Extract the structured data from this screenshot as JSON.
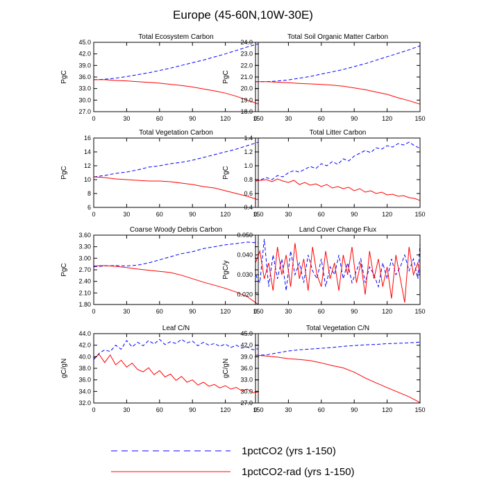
{
  "figure": {
    "title": "Europe (45-60N,10W-30E)",
    "legend": [
      {
        "label": "1pctCO2 (yrs 1-150)",
        "color": "#0000ff",
        "dash": "dashed"
      },
      {
        "label": "1pctCO2-rad (yrs 1-150)",
        "color": "#ff0000",
        "dash": "solid"
      }
    ],
    "colors": {
      "blue_series": "#0000ff",
      "red_series": "#ff0000"
    }
  },
  "chart_data": [
    {
      "type": "line",
      "title": "Total Ecosystem Carbon",
      "ylabel": "PgC",
      "xlim": [
        0,
        150
      ],
      "ylim": [
        27.0,
        45.0
      ],
      "xticks": [
        0,
        30,
        60,
        90,
        120,
        150
      ],
      "xtick_labels": [
        "0",
        "30",
        "60",
        "90",
        "120",
        "150"
      ],
      "yticks": [
        27.0,
        30.0,
        33.0,
        36.0,
        39.0,
        42.0,
        45.0
      ],
      "ytick_labels": [
        "27.0",
        "30.0",
        "33.0",
        "36.0",
        "39.0",
        "42.0",
        "45.0"
      ],
      "x": [
        0,
        10,
        20,
        30,
        40,
        50,
        60,
        70,
        80,
        90,
        100,
        110,
        120,
        130,
        140,
        150
      ],
      "series": [
        {
          "name": "1pctCO2 (yrs 1-150)",
          "color": "#0000ff",
          "dash": "dashed",
          "values": [
            35.3,
            35.4,
            35.7,
            36.1,
            36.6,
            37.1,
            37.7,
            38.3,
            39.0,
            39.7,
            40.4,
            41.2,
            42.0,
            42.9,
            43.8,
            44.6
          ]
        },
        {
          "name": "1pctCO2-rad (yrs 1-150)",
          "color": "#ff0000",
          "dash": "solid",
          "values": [
            35.3,
            35.3,
            35.1,
            35.0,
            34.8,
            34.6,
            34.4,
            34.1,
            33.8,
            33.4,
            32.9,
            32.4,
            31.8,
            31.0,
            30.0,
            29.0
          ]
        }
      ]
    },
    {
      "type": "line",
      "title": "Total Soil Organic Matter Carbon",
      "ylabel": "PgC",
      "xlim": [
        0,
        150
      ],
      "ylim": [
        18.0,
        24.0
      ],
      "xticks": [
        0,
        30,
        60,
        90,
        120,
        150
      ],
      "xtick_labels": [
        "0",
        "30",
        "60",
        "90",
        "120",
        "150"
      ],
      "yticks": [
        18.0,
        19.0,
        20.0,
        21.0,
        22.0,
        23.0,
        24.0
      ],
      "ytick_labels": [
        "18.0",
        "19.0",
        "20.0",
        "21.0",
        "22.0",
        "23.0",
        "24.0"
      ],
      "x": [
        0,
        10,
        20,
        30,
        40,
        50,
        60,
        70,
        80,
        90,
        100,
        110,
        120,
        130,
        140,
        150
      ],
      "series": [
        {
          "name": "1pctCO2 (yrs 1-150)",
          "color": "#0000ff",
          "dash": "dashed",
          "values": [
            20.6,
            20.6,
            20.65,
            20.75,
            20.9,
            21.05,
            21.25,
            21.45,
            21.65,
            21.9,
            22.15,
            22.45,
            22.75,
            23.05,
            23.35,
            23.7
          ]
        },
        {
          "name": "1pctCO2-rad (yrs 1-150)",
          "color": "#ff0000",
          "dash": "solid",
          "values": [
            20.6,
            20.6,
            20.55,
            20.5,
            20.45,
            20.4,
            20.35,
            20.3,
            20.2,
            20.05,
            19.9,
            19.7,
            19.5,
            19.2,
            18.95,
            18.65
          ]
        }
      ]
    },
    {
      "type": "line",
      "title": "Total Vegetation Carbon",
      "ylabel": "PgC",
      "xlim": [
        0,
        150
      ],
      "ylim": [
        6,
        16
      ],
      "xticks": [
        0,
        30,
        60,
        90,
        120,
        150
      ],
      "xtick_labels": [
        "0",
        "30",
        "60",
        "90",
        "120",
        "150"
      ],
      "yticks": [
        6,
        8,
        10,
        12,
        14,
        16
      ],
      "ytick_labels": [
        "6",
        "8",
        "10",
        "12",
        "14",
        "16"
      ],
      "x": [
        0,
        10,
        20,
        30,
        40,
        50,
        60,
        70,
        80,
        90,
        100,
        110,
        120,
        130,
        140,
        150
      ],
      "series": [
        {
          "name": "1pctCO2 (yrs 1-150)",
          "color": "#0000ff",
          "dash": "dashed",
          "values": [
            10.4,
            10.6,
            10.9,
            11.1,
            11.4,
            11.8,
            12.0,
            12.3,
            12.5,
            12.8,
            13.2,
            13.6,
            14.0,
            14.4,
            14.9,
            15.4
          ]
        },
        {
          "name": "1pctCO2-rad (yrs 1-150)",
          "color": "#ff0000",
          "dash": "solid",
          "values": [
            10.4,
            10.3,
            10.1,
            10.0,
            9.9,
            9.8,
            9.8,
            9.7,
            9.5,
            9.3,
            9.0,
            8.8,
            8.4,
            8.0,
            7.6,
            7.1
          ]
        }
      ]
    },
    {
      "type": "line",
      "title": "Total Litter Carbon",
      "ylabel": "PgC",
      "xlim": [
        0,
        150
      ],
      "ylim": [
        0.4,
        1.4
      ],
      "xticks": [
        0,
        30,
        60,
        90,
        120,
        150
      ],
      "xtick_labels": [
        "0",
        "30",
        "60",
        "90",
        "120",
        "150"
      ],
      "yticks": [
        0.4,
        0.6,
        0.8,
        1.0,
        1.2,
        1.4
      ],
      "ytick_labels": [
        "0.4",
        "0.6",
        "0.8",
        "1.0",
        "1.2",
        "1.4"
      ],
      "x": [
        0,
        5,
        10,
        15,
        20,
        25,
        30,
        35,
        40,
        45,
        50,
        55,
        60,
        65,
        70,
        75,
        80,
        85,
        90,
        95,
        100,
        105,
        110,
        115,
        120,
        125,
        130,
        135,
        140,
        145,
        150
      ],
      "series": [
        {
          "name": "1pctCO2 (yrs 1-150)",
          "color": "#0000ff",
          "dash": "dashed",
          "values": [
            0.78,
            0.8,
            0.83,
            0.8,
            0.86,
            0.84,
            0.9,
            0.93,
            0.91,
            0.95,
            0.99,
            0.96,
            1.03,
            1.0,
            1.06,
            1.02,
            1.1,
            1.07,
            1.14,
            1.18,
            1.22,
            1.19,
            1.26,
            1.24,
            1.29,
            1.27,
            1.32,
            1.3,
            1.34,
            1.29,
            1.25
          ]
        },
        {
          "name": "1pctCO2-rad (yrs 1-150)",
          "color": "#ff0000",
          "dash": "solid",
          "values": [
            0.78,
            0.79,
            0.8,
            0.77,
            0.81,
            0.78,
            0.76,
            0.79,
            0.73,
            0.76,
            0.72,
            0.74,
            0.7,
            0.73,
            0.68,
            0.7,
            0.67,
            0.69,
            0.64,
            0.67,
            0.62,
            0.64,
            0.6,
            0.62,
            0.58,
            0.59,
            0.56,
            0.57,
            0.54,
            0.53,
            0.5
          ]
        }
      ]
    },
    {
      "type": "line",
      "title": "Coarse Woody Debris Carbon",
      "ylabel": "PgC",
      "xlim": [
        0,
        150
      ],
      "ylim": [
        1.8,
        3.6
      ],
      "xticks": [
        0,
        30,
        60,
        90,
        120,
        150
      ],
      "xtick_labels": [
        "0",
        "30",
        "60",
        "90",
        "120",
        "150"
      ],
      "yticks": [
        1.8,
        2.1,
        2.4,
        2.7,
        3.0,
        3.3,
        3.6
      ],
      "ytick_labels": [
        "1.80",
        "2.10",
        "2.40",
        "2.70",
        "3.00",
        "3.30",
        "3.60"
      ],
      "x": [
        0,
        10,
        20,
        30,
        40,
        50,
        60,
        70,
        80,
        90,
        100,
        110,
        120,
        130,
        140,
        150
      ],
      "series": [
        {
          "name": "1pctCO2 (yrs 1-150)",
          "color": "#0000ff",
          "dash": "dashed",
          "values": [
            2.78,
            2.8,
            2.81,
            2.8,
            2.82,
            2.88,
            2.96,
            3.04,
            3.12,
            3.17,
            3.25,
            3.3,
            3.35,
            3.38,
            3.42,
            3.4
          ]
        },
        {
          "name": "1pctCO2-rad (yrs 1-150)",
          "color": "#ff0000",
          "dash": "solid",
          "values": [
            2.8,
            2.81,
            2.79,
            2.76,
            2.72,
            2.69,
            2.66,
            2.63,
            2.56,
            2.47,
            2.38,
            2.3,
            2.22,
            2.12,
            2.0,
            1.8
          ]
        }
      ]
    },
    {
      "type": "line",
      "title": "Land Cover Change Flux",
      "ylabel": "PgC/y",
      "xlim": [
        0,
        150
      ],
      "ylim": [
        0.015,
        0.05
      ],
      "xticks": [
        0,
        30,
        60,
        90,
        120,
        150
      ],
      "xtick_labels": [
        "0",
        "30",
        "60",
        "90",
        "120",
        "150"
      ],
      "yticks": [
        0.02,
        0.03,
        0.04,
        0.05
      ],
      "ytick_labels": [
        "0.020",
        "0.030",
        "0.040",
        "0.050"
      ],
      "x": [
        0,
        4,
        8,
        12,
        16,
        20,
        24,
        28,
        32,
        36,
        40,
        44,
        48,
        52,
        56,
        60,
        64,
        68,
        72,
        76,
        80,
        84,
        88,
        92,
        96,
        100,
        104,
        108,
        112,
        116,
        120,
        124,
        128,
        132,
        136,
        140,
        144,
        148,
        150
      ],
      "series": [
        {
          "name": "1pctCO2 (yrs 1-150)",
          "color": "#0000ff",
          "dash": "dashed",
          "values": [
            0.03,
            0.026,
            0.048,
            0.024,
            0.04,
            0.028,
            0.038,
            0.022,
            0.042,
            0.03,
            0.036,
            0.026,
            0.04,
            0.032,
            0.028,
            0.038,
            0.024,
            0.034,
            0.03,
            0.04,
            0.028,
            0.036,
            0.026,
            0.032,
            0.038,
            0.026,
            0.034,
            0.03,
            0.024,
            0.036,
            0.028,
            0.038,
            0.03,
            0.034,
            0.04,
            0.032,
            0.038,
            0.028,
            0.046
          ]
        },
        {
          "name": "1pctCO2-rad (yrs 1-150)",
          "color": "#ff0000",
          "dash": "solid",
          "values": [
            0.036,
            0.042,
            0.028,
            0.036,
            0.022,
            0.044,
            0.03,
            0.04,
            0.024,
            0.046,
            0.028,
            0.038,
            0.022,
            0.044,
            0.03,
            0.024,
            0.042,
            0.028,
            0.036,
            0.022,
            0.04,
            0.03,
            0.044,
            0.026,
            0.036,
            0.02,
            0.042,
            0.028,
            0.038,
            0.024,
            0.034,
            0.018,
            0.04,
            0.028,
            0.016,
            0.044,
            0.03,
            0.036,
            0.03
          ]
        }
      ]
    },
    {
      "type": "line",
      "title": "Leaf C/N",
      "ylabel": "gC/gN",
      "xlim": [
        0,
        150
      ],
      "ylim": [
        32.0,
        44.0
      ],
      "xticks": [
        0,
        30,
        60,
        90,
        120,
        150
      ],
      "xtick_labels": [
        "0",
        "30",
        "60",
        "90",
        "120",
        "150"
      ],
      "yticks": [
        32.0,
        34.0,
        36.0,
        38.0,
        40.0,
        42.0,
        44.0
      ],
      "ytick_labels": [
        "32.0",
        "34.0",
        "36.0",
        "38.0",
        "40.0",
        "42.0",
        "44.0"
      ],
      "x": [
        0,
        5,
        10,
        15,
        20,
        25,
        30,
        35,
        40,
        45,
        50,
        55,
        60,
        65,
        70,
        75,
        80,
        85,
        90,
        95,
        100,
        105,
        110,
        115,
        120,
        125,
        130,
        135,
        140,
        145,
        150
      ],
      "series": [
        {
          "name": "1pctCO2 (yrs 1-150)",
          "color": "#0000ff",
          "dash": "dashed",
          "values": [
            39.5,
            40.6,
            41.2,
            40.9,
            42.0,
            41.3,
            42.8,
            41.7,
            42.5,
            41.9,
            42.8,
            42.2,
            43.0,
            42.1,
            42.6,
            42.3,
            43.0,
            42.4,
            42.7,
            41.9,
            42.5,
            42.0,
            42.3,
            41.8,
            42.2,
            41.6,
            42.0,
            41.5,
            41.7,
            41.2,
            41.4
          ]
        },
        {
          "name": "1pctCO2-rad (yrs 1-150)",
          "color": "#ff0000",
          "dash": "solid",
          "values": [
            39.8,
            40.4,
            39.0,
            40.3,
            38.6,
            39.4,
            38.2,
            38.9,
            37.8,
            37.4,
            38.1,
            36.9,
            37.6,
            36.5,
            37.0,
            35.9,
            36.6,
            35.6,
            36.0,
            35.1,
            35.6,
            34.9,
            35.2,
            34.6,
            35.0,
            34.4,
            34.7,
            34.1,
            34.4,
            33.8,
            33.9
          ]
        }
      ]
    },
    {
      "type": "line",
      "title": "Total Vegetation C/N",
      "ylabel": "gC/gN",
      "xlim": [
        0,
        150
      ],
      "ylim": [
        27.0,
        45.0
      ],
      "xticks": [
        0,
        30,
        60,
        90,
        120,
        150
      ],
      "xtick_labels": [
        "0",
        "30",
        "60",
        "90",
        "120",
        "150"
      ],
      "yticks": [
        27.0,
        30.0,
        33.0,
        36.0,
        39.0,
        42.0,
        45.0
      ],
      "ytick_labels": [
        "27.0",
        "30.0",
        "33.0",
        "36.0",
        "39.0",
        "42.0",
        "45.0"
      ],
      "x": [
        0,
        10,
        20,
        30,
        40,
        50,
        60,
        70,
        80,
        90,
        100,
        110,
        120,
        130,
        140,
        150
      ],
      "series": [
        {
          "name": "1pctCO2 (yrs 1-150)",
          "color": "#0000ff",
          "dash": "dashed",
          "values": [
            39.4,
            39.5,
            40.0,
            40.5,
            40.8,
            41.0,
            41.2,
            41.4,
            41.7,
            41.9,
            42.1,
            42.2,
            42.4,
            42.5,
            42.6,
            42.8
          ]
        },
        {
          "name": "1pctCO2-rad (yrs 1-150)",
          "color": "#ff0000",
          "dash": "solid",
          "values": [
            39.4,
            39.2,
            38.9,
            38.5,
            38.3,
            38.0,
            37.4,
            36.7,
            36.1,
            35.0,
            33.5,
            32.2,
            31.0,
            29.8,
            28.6,
            27.1
          ]
        }
      ]
    }
  ]
}
